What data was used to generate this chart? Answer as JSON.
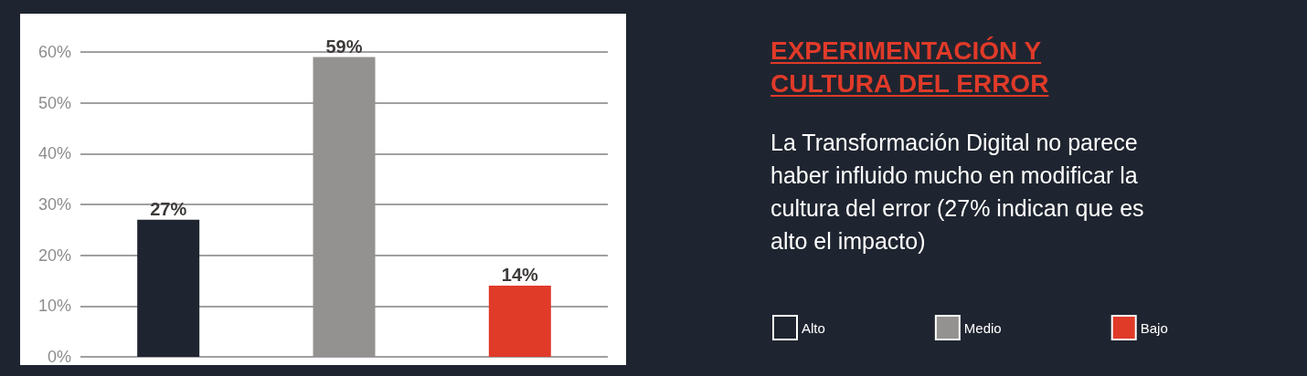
{
  "chart_data": {
    "type": "bar",
    "title": "EXPERIMENTACIÓN Y CULTURA DEL ERROR",
    "subtitle": "La Transformación Digital no parece haber influido mucho en modificar la cultura del error (27% indican que es alto el impacto)",
    "categories": [
      null,
      null,
      null
    ],
    "stacked": true,
    "series": [
      {
        "name": "Alto",
        "color": "#1f2530",
        "values": [
          27,
          null,
          null
        ],
        "value_labels": [
          "27%",
          null,
          null
        ]
      },
      {
        "name": "Medio",
        "color": "#939290",
        "values": [
          null,
          59,
          null
        ],
        "value_labels": [
          null,
          "59%",
          null
        ]
      },
      {
        "name": "Bajo",
        "color": "#e03a29",
        "values": [
          null,
          null,
          14
        ],
        "value_labels": [
          null,
          null,
          "14%"
        ]
      }
    ],
    "ylim": [
      0,
      60
    ],
    "yticks": [
      {
        "value": 0,
        "label": "0%"
      },
      {
        "value": 10,
        "label": "10%"
      },
      {
        "value": 20,
        "label": "20%"
      },
      {
        "value": 30,
        "label": "30%"
      },
      {
        "value": 40,
        "label": "40%"
      },
      {
        "value": 50,
        "label": "50%"
      },
      {
        "value": 60,
        "label": "60%"
      }
    ],
    "grid": "y",
    "legend": "right"
  }
}
